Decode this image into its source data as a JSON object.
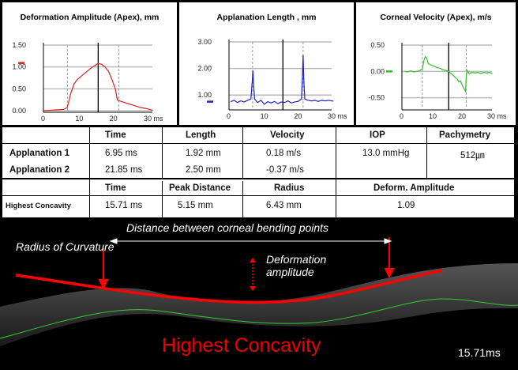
{
  "chart_data": [
    {
      "type": "line",
      "title": "Deformation Amplitude (Apex), mm",
      "xlabel": "ms",
      "xlim": [
        0,
        32
      ],
      "ylim": [
        0,
        1.5
      ],
      "x_ticks": [
        "0",
        "10",
        "20",
        "30 ms"
      ],
      "y_ticks": [
        "0.00",
        "0.50",
        "1.00",
        "1.50"
      ],
      "color": "#e02020",
      "marker_lines": {
        "dashed": [
          7,
          22
        ],
        "solid": [
          16
        ]
      },
      "current_value": 1.09,
      "points": [
        [
          0,
          0
        ],
        [
          2,
          0.01
        ],
        [
          4,
          0.02
        ],
        [
          6,
          0.03
        ],
        [
          7,
          0.08
        ],
        [
          8,
          0.4
        ],
        [
          9,
          0.62
        ],
        [
          10,
          0.72
        ],
        [
          12,
          0.85
        ],
        [
          14,
          0.98
        ],
        [
          15,
          1.03
        ],
        [
          16,
          1.08
        ],
        [
          17,
          1.06
        ],
        [
          18,
          1.0
        ],
        [
          19,
          0.9
        ],
        [
          20,
          0.72
        ],
        [
          21,
          0.5
        ],
        [
          21.6,
          0.25
        ],
        [
          22,
          0.23
        ],
        [
          24,
          0.18
        ],
        [
          26,
          0.13
        ],
        [
          28,
          0.08
        ],
        [
          30,
          0.05
        ],
        [
          32,
          0.01
        ]
      ]
    },
    {
      "type": "line",
      "title": "Applanation Length , mm",
      "xlabel": "ms",
      "xlim": [
        0,
        32
      ],
      "ylim": [
        0.5,
        3.0
      ],
      "x_ticks": [
        "0",
        "10",
        "20",
        "30 ms"
      ],
      "y_ticks": [
        "1.00",
        "2.00",
        "3.00"
      ],
      "color": "#2020c0",
      "marker_lines": {
        "dashed": [
          7,
          22
        ],
        "solid": [
          16
        ]
      },
      "current_value": 0.75,
      "points": [
        [
          0.5,
          0.75
        ],
        [
          1.5,
          0.8
        ],
        [
          2.5,
          0.72
        ],
        [
          3.5,
          0.78
        ],
        [
          4.5,
          0.74
        ],
        [
          5.5,
          0.8
        ],
        [
          6.5,
          0.85
        ],
        [
          6.9,
          1.5
        ],
        [
          7.1,
          1.92
        ],
        [
          7.3,
          1.4
        ],
        [
          7.6,
          0.85
        ],
        [
          8.5,
          0.72
        ],
        [
          9.5,
          0.8
        ],
        [
          10.5,
          0.65
        ],
        [
          11.5,
          0.75
        ],
        [
          12.5,
          0.7
        ],
        [
          13.5,
          0.76
        ],
        [
          14.5,
          0.68
        ],
        [
          15.5,
          0.74
        ],
        [
          16.5,
          0.72
        ],
        [
          17.5,
          0.78
        ],
        [
          18.5,
          0.7
        ],
        [
          19.5,
          0.74
        ],
        [
          20.5,
          0.76
        ],
        [
          21.5,
          0.85
        ],
        [
          21.8,
          1.7
        ],
        [
          22,
          2.5
        ],
        [
          22.2,
          1.6
        ],
        [
          22.5,
          0.85
        ],
        [
          23.5,
          0.8
        ],
        [
          24.5,
          0.78
        ],
        [
          25.5,
          0.8
        ],
        [
          26.5,
          0.76
        ],
        [
          27.5,
          0.8
        ],
        [
          28.5,
          0.78
        ],
        [
          29.5,
          0.8
        ],
        [
          31,
          0.77
        ]
      ]
    },
    {
      "type": "line",
      "title": "Corneal Velocity (Apex), m/s",
      "xlabel": "ms",
      "xlim": [
        0,
        32
      ],
      "ylim": [
        -0.7,
        0.5
      ],
      "x_ticks": [
        "0",
        "10",
        "20",
        "30 ms"
      ],
      "y_ticks": [
        "-0.50",
        "0.00",
        "0.50"
      ],
      "color": "#30c030",
      "marker_lines": {
        "dashed": [
          7,
          22
        ],
        "solid": [
          16
        ]
      },
      "current_value": 0.0,
      "points": [
        [
          1,
          0
        ],
        [
          2,
          -0.01
        ],
        [
          3,
          0.01
        ],
        [
          4,
          -0.01
        ],
        [
          5,
          0
        ],
        [
          6,
          0.01
        ],
        [
          7,
          0.05
        ],
        [
          7.5,
          0.2
        ],
        [
          8,
          0.28
        ],
        [
          8.5,
          0.25
        ],
        [
          9,
          0.15
        ],
        [
          10,
          0.12
        ],
        [
          11,
          0.1
        ],
        [
          12,
          0.07
        ],
        [
          13,
          0.06
        ],
        [
          14,
          0.03
        ],
        [
          15,
          0.02
        ],
        [
          16,
          0
        ],
        [
          17,
          -0.05
        ],
        [
          18,
          -0.1
        ],
        [
          19,
          -0.15
        ],
        [
          19.5,
          -0.2
        ],
        [
          20,
          -0.18
        ],
        [
          21,
          -0.3
        ],
        [
          21.8,
          -0.38
        ],
        [
          22,
          -0.1
        ],
        [
          22.3,
          0.02
        ],
        [
          23,
          -0.04
        ],
        [
          24,
          -0.02
        ],
        [
          25,
          -0.03
        ],
        [
          26,
          -0.02
        ],
        [
          27,
          -0.04
        ],
        [
          28,
          -0.02
        ],
        [
          29,
          -0.03
        ],
        [
          30,
          -0.02
        ],
        [
          31,
          -0.04
        ]
      ]
    }
  ],
  "table": {
    "headers1": [
      "Time",
      "Length",
      "Velocity",
      "IOP",
      "Pachymetry"
    ],
    "rows": [
      {
        "label": "Applanation 1",
        "time": "6.95 ms",
        "length": "1.92  mm",
        "velocity": "0.18 m/s",
        "iop": "13.0 mmHg",
        "pachy": "512㎛"
      },
      {
        "label": "Applanation 2",
        "time": "21.85 ms",
        "length": "2.50  mm",
        "velocity": "-0.37 m/s"
      }
    ],
    "headers2": [
      "Time",
      "Peak Distance",
      "Radius",
      "Deform. Amplitude"
    ],
    "concavity": {
      "label": "Highest Concavity",
      "time": "15.71 ms",
      "peak_distance": "5.15 mm",
      "radius": "6.43 mm",
      "amplitude": "1.09"
    }
  },
  "image": {
    "radius_label": "Radius of Curvature",
    "distance_label": "Distance between corneal bending points",
    "deformation_label": "Deformation amplitude",
    "title": "Highest Concavity",
    "timestamp": "15.71ms"
  }
}
